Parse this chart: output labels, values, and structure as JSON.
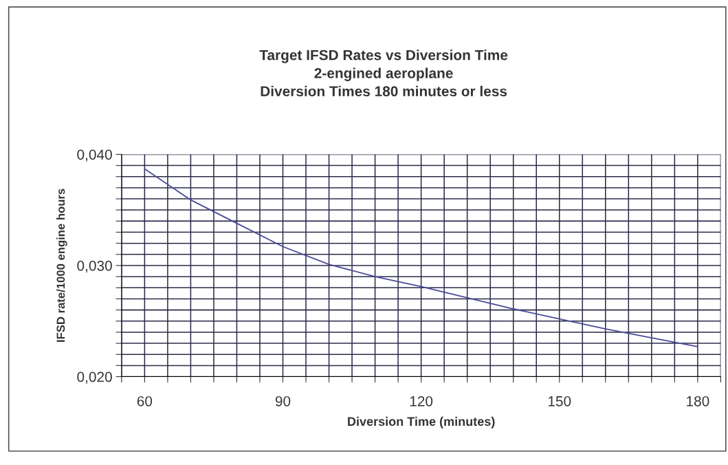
{
  "chart_data": {
    "type": "line",
    "title": "Target IFSD Rates vs Diversion Time\n2-engined aeroplane\nDiversion Times 180 minutes or less",
    "xlabel": "Diversion Time (minutes)",
    "ylabel": "IFSD rate/1000 engine hours",
    "x": [
      60,
      70,
      80,
      90,
      100,
      110,
      120,
      130,
      140,
      150,
      160,
      170,
      180
    ],
    "series": [
      {
        "color": "#4a4a9a",
        "values": [
          0.0387,
          0.0359,
          0.0338,
          0.0317,
          0.0301,
          0.029,
          0.0281,
          0.0271,
          0.0261,
          0.0252,
          0.0243,
          0.0235,
          0.0227
        ]
      }
    ],
    "xlim": [
      55,
      185
    ],
    "xticks": [
      {
        "value": 55,
        "label": null
      },
      {
        "value": 60,
        "label": "60"
      },
      {
        "value": 65,
        "label": null
      },
      {
        "value": 70,
        "label": null
      },
      {
        "value": 75,
        "label": null
      },
      {
        "value": 80,
        "label": null
      },
      {
        "value": 85,
        "label": null
      },
      {
        "value": 90,
        "label": "90"
      },
      {
        "value": 95,
        "label": null
      },
      {
        "value": 100,
        "label": null
      },
      {
        "value": 105,
        "label": null
      },
      {
        "value": 110,
        "label": null
      },
      {
        "value": 115,
        "label": null
      },
      {
        "value": 120,
        "label": "120"
      },
      {
        "value": 125,
        "label": null
      },
      {
        "value": 130,
        "label": null
      },
      {
        "value": 135,
        "label": null
      },
      {
        "value": 140,
        "label": null
      },
      {
        "value": 145,
        "label": null
      },
      {
        "value": 150,
        "label": "150"
      },
      {
        "value": 155,
        "label": null
      },
      {
        "value": 160,
        "label": null
      },
      {
        "value": 165,
        "label": null
      },
      {
        "value": 170,
        "label": null
      },
      {
        "value": 175,
        "label": null
      },
      {
        "value": 180,
        "label": "180"
      },
      {
        "value": 185,
        "label": null
      }
    ],
    "ylim": [
      0.02,
      0.04
    ],
    "yticks": [
      {
        "value": 0.02,
        "label": "0,020"
      },
      {
        "value": 0.021,
        "label": null
      },
      {
        "value": 0.022,
        "label": null
      },
      {
        "value": 0.023,
        "label": null
      },
      {
        "value": 0.024,
        "label": null
      },
      {
        "value": 0.025,
        "label": null
      },
      {
        "value": 0.026,
        "label": null
      },
      {
        "value": 0.027,
        "label": null
      },
      {
        "value": 0.028,
        "label": null
      },
      {
        "value": 0.029,
        "label": null
      },
      {
        "value": 0.03,
        "label": "0,030"
      },
      {
        "value": 0.031,
        "label": null
      },
      {
        "value": 0.032,
        "label": null
      },
      {
        "value": 0.033,
        "label": null
      },
      {
        "value": 0.034,
        "label": null
      },
      {
        "value": 0.035,
        "label": null
      },
      {
        "value": 0.036,
        "label": null
      },
      {
        "value": 0.037,
        "label": null
      },
      {
        "value": 0.038,
        "label": null
      },
      {
        "value": 0.039,
        "label": null
      },
      {
        "value": 0.04,
        "label": "0,040"
      }
    ],
    "grid": true
  }
}
